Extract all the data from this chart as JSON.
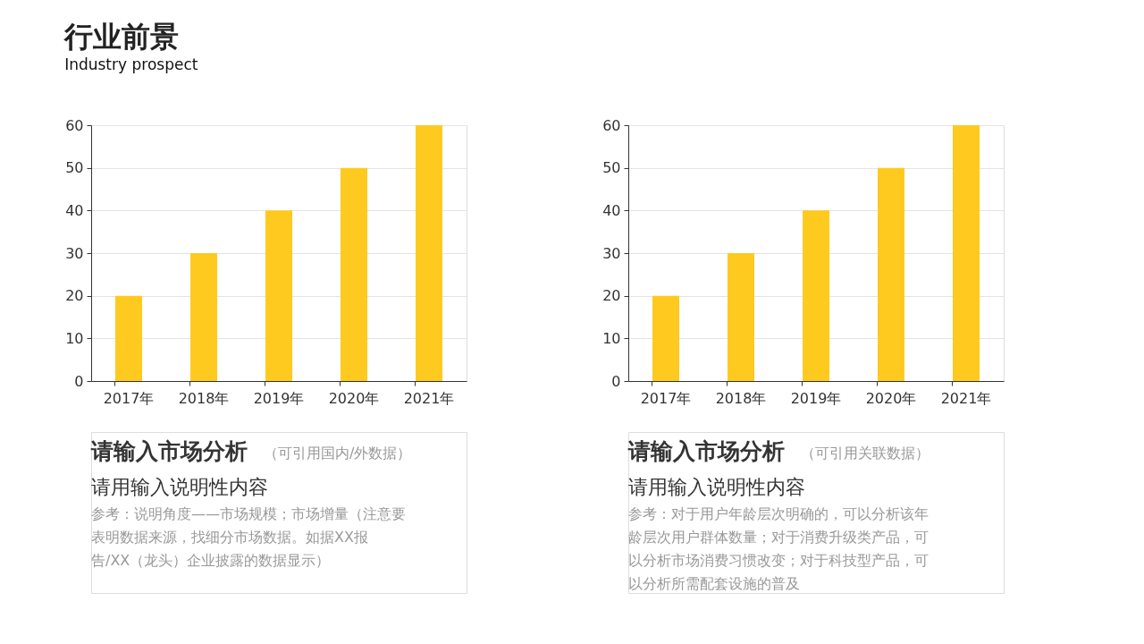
{
  "chart_data": [
    {
      "type": "bar",
      "title": "行业前景",
      "subtitle": "Industry prospect",
      "categories": [
        "2017年",
        "2018年",
        "2019年",
        "2020年",
        "2021年"
      ],
      "values": [
        20,
        30,
        40,
        50,
        60
      ],
      "color": "#ffca1f",
      "ylim": [
        0,
        60
      ],
      "yticks": [
        0,
        10,
        20,
        30,
        40,
        50,
        60
      ],
      "grid": "y",
      "annotations": [
        "请输入市场分析",
        "（可引用国内/外数据）",
        "请用输入说明性内容",
        "参考：说明角度——市场规模；市场增量（注意要",
        "表明数据来源，找细分市场数据。如据XX报",
        "告/XX（龙头）企业披露的数据显示）"
      ]
    },
    {
      "type": "bar",
      "categories": [
        "2017年",
        "2018年",
        "2019年",
        "2020年",
        "2021年"
      ],
      "values": [
        20,
        30,
        40,
        50,
        60
      ],
      "color": "#ffca1f",
      "ylim": [
        0,
        60
      ],
      "yticks": [
        0,
        10,
        20,
        30,
        40,
        50,
        60
      ],
      "grid": "y",
      "annotations": [
        "请输入市场分析",
        "（可引用关联数据）",
        "请用输入说明性内容",
        "参考：对于用户年龄层次明确的，可以分析该年",
        "龄层次用户群体数量；对于消费升级类产品，可",
        "以分析市场消费习惯改变；对于科技型产品，可",
        "以分析所需配套设施的普及"
      ]
    }
  ]
}
